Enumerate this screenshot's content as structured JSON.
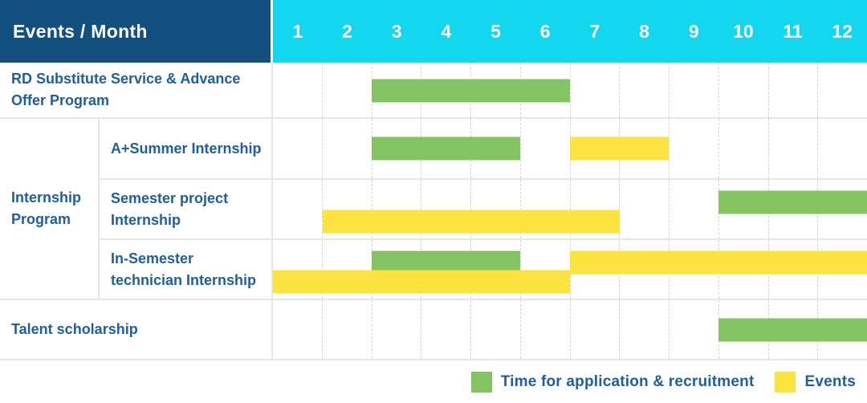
{
  "header": {
    "title": "Events / Month",
    "months": [
      "1",
      "2",
      "3",
      "4",
      "5",
      "6",
      "7",
      "8",
      "9",
      "10",
      "11",
      "12"
    ]
  },
  "colors": {
    "header_bg": "#14507f",
    "months_bg": "#12d7ef",
    "label_text": "#1d5fa2",
    "green": "#85c463",
    "yellow": "#fde33f"
  },
  "legend": [
    {
      "label": "Time for application & recruitment",
      "color": "green"
    },
    {
      "label": "Events",
      "color": "yellow"
    }
  ],
  "group_label": "Internship Program",
  "rows": {
    "rd": "RD Substitute Service & Advance Offer Program",
    "summer": "A+Summer Internship",
    "semester_project": "Semester project Internship",
    "in_semester": "In-Semester technician Internship",
    "talent": "Talent scholarship"
  },
  "chart_data": {
    "type": "table",
    "subtype": "gantt",
    "title": "Events / Month",
    "x_axis": {
      "label": "Month",
      "ticks": [
        1,
        2,
        3,
        4,
        5,
        6,
        7,
        8,
        9,
        10,
        11,
        12
      ]
    },
    "legend_series": {
      "green": "Time for application & recruitment",
      "yellow": "Events"
    },
    "rows": [
      {
        "group": null,
        "label": "RD Substitute Service & Advance Offer Program",
        "lines": 1,
        "bars": [
          {
            "color": "green",
            "series": "Time for application & recruitment",
            "start_month": 3,
            "end_month": 6,
            "line": 0
          }
        ]
      },
      {
        "group": "Internship Program",
        "label": "A+Summer Internship",
        "lines": 1,
        "bars": [
          {
            "color": "green",
            "series": "Time for application & recruitment",
            "start_month": 3,
            "end_month": 5,
            "line": 0
          },
          {
            "color": "yellow",
            "series": "Events",
            "start_month": 7,
            "end_month": 8,
            "line": 0
          }
        ]
      },
      {
        "group": "Internship Program",
        "label": "Semester project Internship",
        "lines": 2,
        "bars": [
          {
            "color": "green",
            "series": "Time for application & recruitment",
            "start_month": 10,
            "end_month": 12,
            "line": 0
          },
          {
            "color": "yellow",
            "series": "Events",
            "start_month": 2,
            "end_month": 7,
            "line": 1
          }
        ]
      },
      {
        "group": "Internship Program",
        "label": "In-Semester technician Internship",
        "lines": 2,
        "bars": [
          {
            "color": "green",
            "series": "Time for application & recruitment",
            "start_month": 3,
            "end_month": 5,
            "line": 0
          },
          {
            "color": "yellow",
            "series": "Events",
            "start_month": 7,
            "end_month": 12,
            "line": 0
          },
          {
            "color": "yellow",
            "series": "Events",
            "start_month": 1,
            "end_month": 6,
            "line": 1
          }
        ]
      },
      {
        "group": null,
        "label": "Talent scholarship",
        "lines": 1,
        "bars": [
          {
            "color": "green",
            "series": "Time for application & recruitment",
            "start_month": 10,
            "end_month": 12,
            "line": 0
          }
        ]
      }
    ]
  }
}
